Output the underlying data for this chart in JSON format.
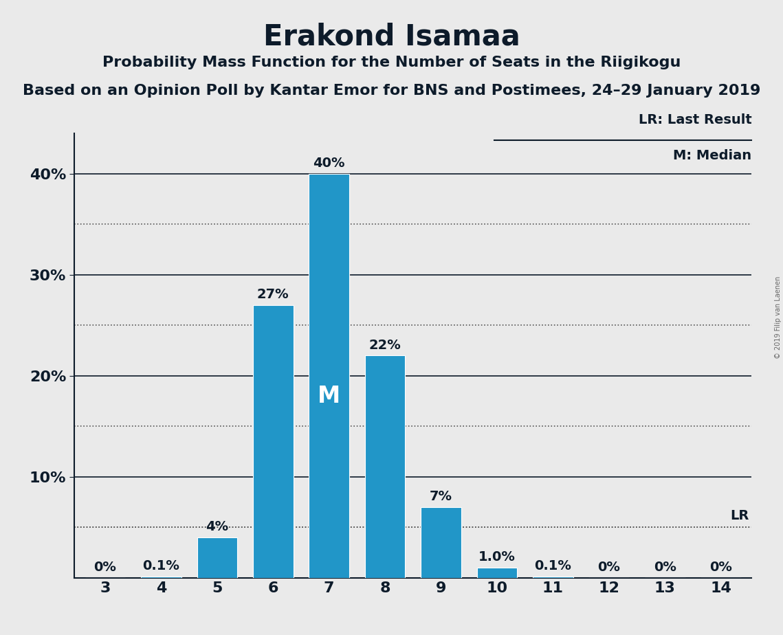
{
  "title": "Erakond Isamaa",
  "subtitle1": "Probability Mass Function for the Number of Seats in the Riigikogu",
  "subtitle2": "Based on an Opinion Poll by Kantar Emor for BNS and Postimees, 24–29 January 2019",
  "copyright": "© 2019 Filip van Laenen",
  "categories": [
    3,
    4,
    5,
    6,
    7,
    8,
    9,
    10,
    11,
    12,
    13,
    14
  ],
  "values": [
    0.0,
    0.1,
    4.0,
    27.0,
    40.0,
    22.0,
    7.0,
    1.0,
    0.1,
    0.0,
    0.0,
    0.0
  ],
  "labels": [
    "0%",
    "0.1%",
    "4%",
    "27%",
    "40%",
    "22%",
    "7%",
    "1.0%",
    "0.1%",
    "0%",
    "0%",
    "0%"
  ],
  "bar_color": "#2196C8",
  "median_seat": 7,
  "lr_value": 5.0,
  "lr_label": "LR",
  "background_color": "#eaeaea",
  "solid_lines": [
    10,
    20,
    30,
    40
  ],
  "dotted_lines": [
    5,
    15,
    25,
    35
  ],
  "ytick_positions": [
    10,
    20,
    30,
    40
  ],
  "ytick_labels": [
    "10%",
    "20%",
    "30%",
    "40%"
  ],
  "ylim": [
    0,
    44
  ],
  "title_fontsize": 30,
  "subtitle1_fontsize": 16,
  "subtitle2_fontsize": 16,
  "label_fontsize": 14,
  "ytick_fontsize": 16,
  "xtick_fontsize": 16,
  "legend_lr_text": "LR: Last Result",
  "legend_m_text": "M: Median",
  "text_color": "#0d1b2a",
  "spine_color": "#0d1b2a"
}
